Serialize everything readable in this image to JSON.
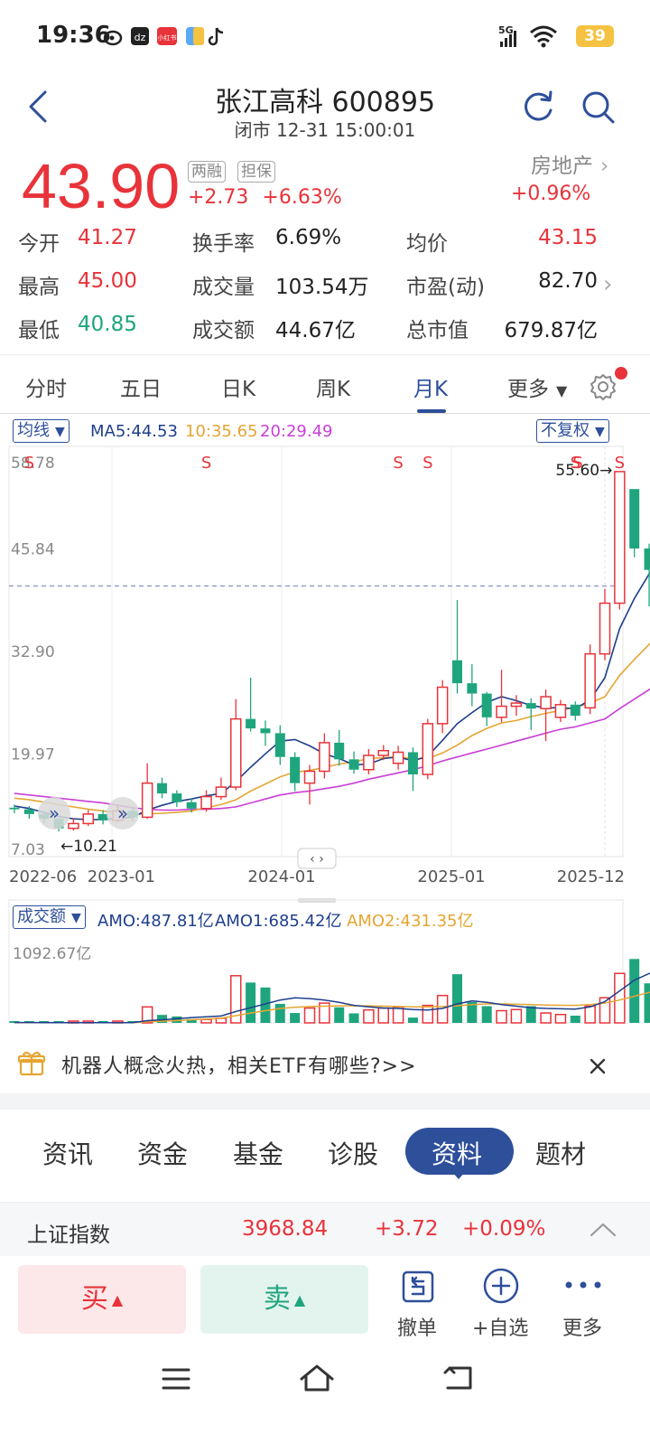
{
  "status_bar": {
    "time": "19:36",
    "network": "5G",
    "battery": "39",
    "apps": [
      "weibo-icon",
      "app-icon",
      "xiaohongshu-icon",
      "app-icon",
      "tiktok-icon"
    ]
  },
  "header": {
    "title": "张江高科 600895",
    "subtitle": "闭市 12-31 15:00:01"
  },
  "quote": {
    "price": "43.90",
    "tags": [
      "两融",
      "担保"
    ],
    "change": "+2.73",
    "change_pct": "+6.63%",
    "sector_name": "房地产",
    "sector_pct": "+0.96%"
  },
  "stats": [
    {
      "label": "今开",
      "value": "41.27",
      "color": "red"
    },
    {
      "label": "换手率",
      "value": "6.69%",
      "color": "dark"
    },
    {
      "label": "均价",
      "value": "43.15",
      "color": "red"
    },
    {
      "label": "最高",
      "value": "45.00",
      "color": "red"
    },
    {
      "label": "成交量",
      "value": "103.54万",
      "color": "dark"
    },
    {
      "label": "市盈(动)",
      "value": "82.70",
      "color": "dark"
    },
    {
      "label": "最低",
      "value": "40.85",
      "color": "green"
    },
    {
      "label": "成交额",
      "value": "44.67亿",
      "color": "dark"
    },
    {
      "label": "总市值",
      "value": "679.87亿",
      "color": "dark"
    }
  ],
  "period_tabs": [
    "分时",
    "五日",
    "日K",
    "周K",
    "月K",
    "更多"
  ],
  "active_period": "月K",
  "kline": {
    "indicator_select": "均线",
    "ma5": "MA5:44.53",
    "ma10": "10:35.65",
    "ma20": "20:29.49",
    "adjust_select": "不复权",
    "y_ticks": [
      "58.78",
      "45.84",
      "32.90",
      "19.97",
      "7.03"
    ],
    "x_ticks": [
      "2022-06",
      "2023-01",
      "2024-01",
      "2025-01",
      "2025-12"
    ],
    "high_label": "55.60→",
    "low_label": "←10.21",
    "s_marker": "S",
    "colors": {
      "up": "#e8333a",
      "down": "#1fa57e",
      "ma5": "#1e3f8c",
      "ma10": "#e5a532",
      "ma20": "#c83fd6"
    }
  },
  "volume": {
    "select": "成交额",
    "amo": "AMO:487.81亿",
    "amo1": "AMO1:685.42亿",
    "amo2": "AMO2:431.35亿",
    "max_label": "1092.67亿"
  },
  "chart_data": {
    "type": "candlestick",
    "interval": "monthly",
    "ylim": [
      7.03,
      58.78
    ],
    "candles": [
      {
        "o": 13.2,
        "c": 13.0,
        "h": 13.6,
        "l": 12.5
      },
      {
        "o": 13.0,
        "c": 12.4,
        "h": 13.4,
        "l": 11.8
      },
      {
        "o": 12.4,
        "c": 11.8,
        "h": 12.8,
        "l": 11.2
      },
      {
        "o": 11.8,
        "c": 10.6,
        "h": 12.2,
        "l": 10.21
      },
      {
        "o": 10.6,
        "c": 11.2,
        "h": 11.9,
        "l": 10.3
      },
      {
        "o": 11.2,
        "c": 12.4,
        "h": 12.9,
        "l": 10.9
      },
      {
        "o": 12.4,
        "c": 11.6,
        "h": 12.9,
        "l": 11.1
      },
      {
        "o": 11.6,
        "c": 12.8,
        "h": 13.6,
        "l": 11.3
      },
      {
        "o": 12.8,
        "c": 12.0,
        "h": 13.3,
        "l": 11.5
      },
      {
        "o": 12.0,
        "c": 16.3,
        "h": 18.8,
        "l": 11.8
      },
      {
        "o": 16.3,
        "c": 15.0,
        "h": 17.0,
        "l": 14.4
      },
      {
        "o": 15.0,
        "c": 13.9,
        "h": 15.4,
        "l": 13.3
      },
      {
        "o": 13.9,
        "c": 13.1,
        "h": 14.4,
        "l": 12.6
      },
      {
        "o": 13.1,
        "c": 14.6,
        "h": 15.4,
        "l": 12.7
      },
      {
        "o": 14.6,
        "c": 15.8,
        "h": 17.0,
        "l": 14.2
      },
      {
        "o": 15.8,
        "c": 24.4,
        "h": 26.9,
        "l": 15.4
      },
      {
        "o": 24.4,
        "c": 23.2,
        "h": 29.6,
        "l": 22.8
      },
      {
        "o": 23.2,
        "c": 22.6,
        "h": 24.2,
        "l": 21.0
      },
      {
        "o": 22.6,
        "c": 19.6,
        "h": 23.6,
        "l": 18.6
      },
      {
        "o": 19.6,
        "c": 16.3,
        "h": 20.2,
        "l": 15.3
      },
      {
        "o": 16.3,
        "c": 17.8,
        "h": 18.6,
        "l": 13.6
      },
      {
        "o": 17.8,
        "c": 21.4,
        "h": 22.6,
        "l": 16.9
      },
      {
        "o": 21.4,
        "c": 19.3,
        "h": 23.0,
        "l": 18.5
      },
      {
        "o": 19.3,
        "c": 18.0,
        "h": 20.3,
        "l": 17.5
      },
      {
        "o": 18.0,
        "c": 19.8,
        "h": 20.6,
        "l": 17.4
      },
      {
        "o": 19.8,
        "c": 20.4,
        "h": 21.1,
        "l": 19.2
      },
      {
        "o": 18.8,
        "c": 20.2,
        "h": 21.0,
        "l": 18.0
      },
      {
        "o": 20.2,
        "c": 17.4,
        "h": 20.8,
        "l": 15.3
      },
      {
        "o": 17.4,
        "c": 23.8,
        "h": 24.4,
        "l": 16.8
      },
      {
        "o": 23.8,
        "c": 28.4,
        "h": 29.3,
        "l": 22.6
      },
      {
        "o": 31.8,
        "c": 28.9,
        "h": 39.4,
        "l": 27.6
      },
      {
        "o": 28.9,
        "c": 27.6,
        "h": 31.3,
        "l": 26.0
      },
      {
        "o": 27.6,
        "c": 24.6,
        "h": 27.8,
        "l": 23.5
      },
      {
        "o": 24.6,
        "c": 26.0,
        "h": 30.6,
        "l": 24.0
      },
      {
        "o": 26.0,
        "c": 26.4,
        "h": 27.4,
        "l": 24.8
      },
      {
        "o": 26.4,
        "c": 25.7,
        "h": 27.0,
        "l": 23.0
      },
      {
        "o": 25.7,
        "c": 27.2,
        "h": 28.1,
        "l": 21.6
      },
      {
        "o": 24.6,
        "c": 26.2,
        "h": 26.8,
        "l": 24.0
      },
      {
        "o": 26.2,
        "c": 24.8,
        "h": 26.6,
        "l": 24.2
      },
      {
        "o": 25.8,
        "c": 32.6,
        "h": 33.8,
        "l": 25.0
      },
      {
        "o": 32.6,
        "c": 39.0,
        "h": 40.8,
        "l": 31.8
      },
      {
        "o": 39.0,
        "c": 55.6,
        "h": 55.6,
        "l": 38.2
      },
      {
        "o": 53.4,
        "c": 45.9,
        "h": 53.4,
        "l": 44.8
      },
      {
        "o": 45.9,
        "c": 43.2,
        "h": 46.5,
        "l": 38.6
      },
      {
        "o": 41.27,
        "c": 43.9,
        "h": 45.0,
        "l": 38.0
      }
    ],
    "ma5": [
      13.4,
      13.1,
      12.6,
      12.1,
      11.8,
      11.7,
      11.7,
      11.9,
      12.0,
      12.9,
      13.5,
      14.0,
      14.3,
      14.7,
      15.0,
      16.5,
      18.3,
      20.0,
      21.6,
      21.8,
      21.0,
      20.0,
      19.4,
      18.6,
      18.7,
      19.4,
      19.6,
      19.1,
      19.7,
      21.7,
      23.8,
      25.2,
      26.5,
      27.2,
      26.7,
      26.1,
      25.8,
      25.8,
      25.7,
      26.8,
      29.6,
      35.8,
      39.6,
      42.7,
      44.5
    ],
    "ma10": [
      14.4,
      14.2,
      13.9,
      13.6,
      13.3,
      13.0,
      12.8,
      12.6,
      12.4,
      12.4,
      12.5,
      12.6,
      12.8,
      13.2,
      13.6,
      14.2,
      15.3,
      16.2,
      17.1,
      17.7,
      17.9,
      18.3,
      18.7,
      19.0,
      19.4,
      19.5,
      19.6,
      19.4,
      19.4,
      20.1,
      21.1,
      22.3,
      23.2,
      23.9,
      24.2,
      24.7,
      25.1,
      25.5,
      25.9,
      26.4,
      27.2,
      29.9,
      31.9,
      33.8,
      35.65
    ],
    "ma20": [
      15.0,
      14.8,
      14.6,
      14.4,
      14.2,
      14.0,
      13.8,
      13.5,
      13.2,
      13.0,
      12.9,
      12.9,
      13.0,
      13.0,
      13.1,
      13.3,
      13.8,
      14.3,
      14.8,
      15.1,
      15.3,
      15.6,
      15.9,
      16.3,
      16.8,
      17.2,
      17.6,
      18.0,
      18.5,
      19.1,
      19.6,
      20.1,
      20.6,
      21.1,
      21.6,
      22.1,
      22.6,
      23.1,
      23.4,
      23.9,
      24.4,
      25.7,
      26.9,
      28.1,
      29.49
    ],
    "amo": [
      3,
      4,
      3,
      2,
      3,
      3,
      2,
      3,
      2,
      210,
      105,
      85,
      50,
      45,
      60,
      620,
      530,
      465,
      250,
      130,
      195,
      260,
      205,
      125,
      170,
      195,
      210,
      70,
      230,
      360,
      640,
      275,
      220,
      160,
      175,
      220,
      130,
      110,
      95,
      220,
      330,
      650,
      840,
      520,
      487.81
    ],
    "amo1": [
      5,
      5,
      4,
      3,
      3,
      3,
      3,
      3,
      3,
      30,
      40,
      55,
      70,
      80,
      90,
      150,
      200,
      250,
      300,
      330,
      320,
      300,
      270,
      230,
      210,
      195,
      190,
      175,
      170,
      190,
      250,
      290,
      270,
      240,
      220,
      200,
      190,
      185,
      180,
      210,
      280,
      420,
      560,
      650,
      685.42
    ],
    "amo2": [
      4,
      4,
      4,
      4,
      3,
      3,
      3,
      3,
      3,
      15,
      22,
      30,
      40,
      50,
      60,
      95,
      130,
      160,
      190,
      205,
      215,
      220,
      225,
      225,
      225,
      220,
      215,
      210,
      210,
      215,
      225,
      240,
      250,
      250,
      245,
      240,
      235,
      232,
      230,
      240,
      260,
      300,
      350,
      400,
      431.35
    ],
    "amo_max": 1092.67,
    "s_marker_indices": [
      1,
      13,
      26,
      28,
      38,
      41
    ],
    "reference_price": 41.17
  },
  "promo": {
    "text": "机器人概念火热，相关ETF有哪些?>>"
  },
  "info_tabs": [
    "资讯",
    "资金",
    "基金",
    "诊股",
    "资料",
    "题材"
  ],
  "active_info_tab": "资料",
  "index_bar": {
    "name": "上证指数",
    "value": "3968.84",
    "change": "+3.72",
    "pct": "+0.09%"
  },
  "actions": {
    "buy": "买",
    "sell": "卖",
    "cancel": "撤单",
    "watchlist": "+自选",
    "more": "更多"
  }
}
